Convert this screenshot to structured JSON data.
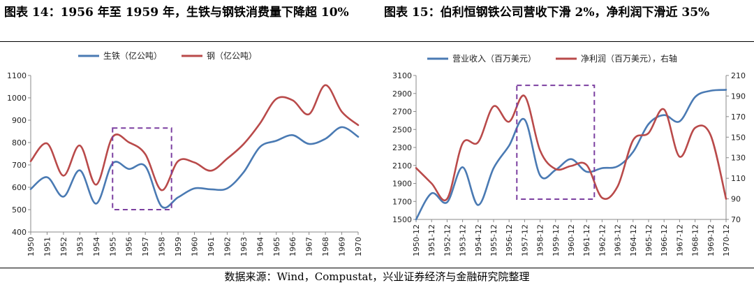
{
  "figures": {
    "left_title": "图表 14：1956 年至 1959 年，生铁与钢铁消费量下降超 10%",
    "right_title": "图表 15：伯利恒钢铁公司营收下滑 2%，净利润下滑近 35%",
    "source": "数据来源：Wind，Compustat，兴业证券经济与金融研究院整理"
  },
  "chart_data": [
    {
      "type": "line",
      "title": "图表 14：1956 年至 1959 年，生铁与钢铁消费量下降超 10%",
      "x": [
        1950,
        1951,
        1952,
        1953,
        1954,
        1955,
        1956,
        1957,
        1958,
        1959,
        1960,
        1961,
        1962,
        1963,
        1964,
        1965,
        1966,
        1967,
        1968,
        1969,
        1970
      ],
      "x_tick_labels": [
        "1950",
        "1951",
        "1952",
        "1953",
        "1954",
        "1955",
        "1956",
        "1957",
        "1958",
        "1959",
        "1960",
        "1961",
        "1962",
        "1963",
        "1964",
        "1965",
        "1966",
        "1967",
        "1968",
        "1969",
        "1970"
      ],
      "series": [
        {
          "name": "生铁（亿公吨）",
          "color": "#4a7ab3",
          "axis": "left",
          "values": [
            592,
            645,
            558,
            676,
            527,
            707,
            682,
            694,
            514,
            555,
            595,
            591,
            595,
            667,
            780,
            808,
            833,
            794,
            817,
            869,
            826
          ]
        },
        {
          "name": "钢（亿公吨）",
          "color": "#b94a4a",
          "axis": "left",
          "values": [
            717,
            796,
            652,
            787,
            612,
            825,
            801,
            748,
            587,
            717,
            711,
            674,
            728,
            793,
            885,
            995,
            989,
            927,
            1057,
            938,
            878
          ]
        }
      ],
      "ylim": [
        400,
        1100
      ],
      "y_ticks": [
        400,
        500,
        600,
        700,
        800,
        900,
        1000,
        1100
      ],
      "grid": false,
      "legend": "top",
      "highlight_box": {
        "x_from": 1955,
        "x_to": 1958.6,
        "y_from": 500,
        "y_to": 865,
        "color": "#7b3fa0"
      }
    },
    {
      "type": "line",
      "title": "图表 15：伯利恒钢铁公司营收下滑 2%，净利润下滑近 35%",
      "x": [
        1950,
        1951,
        1952,
        1953,
        1954,
        1955,
        1956,
        1957,
        1958,
        1959,
        1960,
        1961,
        1962,
        1963,
        1964,
        1965,
        1966,
        1967,
        1968,
        1969,
        1970
      ],
      "x_tick_labels": [
        "1950-12",
        "1951-12",
        "1952-12",
        "1953-12",
        "1954-12",
        "1955-12",
        "1956-12",
        "1957-12",
        "1958-12",
        "1959-12",
        "1960-12",
        "1961-12",
        "1962-12",
        "1963-12",
        "1964-12",
        "1965-12",
        "1966-12",
        "1967-12",
        "1968-12",
        "1969-12",
        "1970-12"
      ],
      "series": [
        {
          "name": "营业收入（百万美元）",
          "color": "#4a7ab3",
          "axis": "left",
          "values": [
            1500,
            1790,
            1690,
            2080,
            1660,
            2070,
            2320,
            2610,
            1990,
            2050,
            2170,
            2030,
            2070,
            2090,
            2250,
            2560,
            2660,
            2590,
            2860,
            2930,
            2940
          ]
        },
        {
          "name": "净利润（百万美元），右轴",
          "color": "#b94a4a",
          "axis": "right",
          "values": [
            120,
            105,
            90,
            144,
            145,
            180,
            165,
            190,
            137,
            119,
            122,
            123,
            91,
            102,
            147,
            154,
            177,
            131,
            159,
            152,
            90
          ]
        }
      ],
      "ylim": [
        1500,
        3100
      ],
      "y_ticks": [
        1500,
        1700,
        1900,
        2100,
        2300,
        2500,
        2700,
        2900,
        3100
      ],
      "y2lim": [
        70,
        210
      ],
      "y2_ticks": [
        70,
        90,
        110,
        130,
        150,
        170,
        190,
        210
      ],
      "grid": false,
      "legend": "top",
      "highlight_box": {
        "x_from": 1956.5,
        "x_to": 1961.5,
        "y_from": 1725,
        "y_to": 2990,
        "color": "#7b3fa0"
      }
    }
  ]
}
